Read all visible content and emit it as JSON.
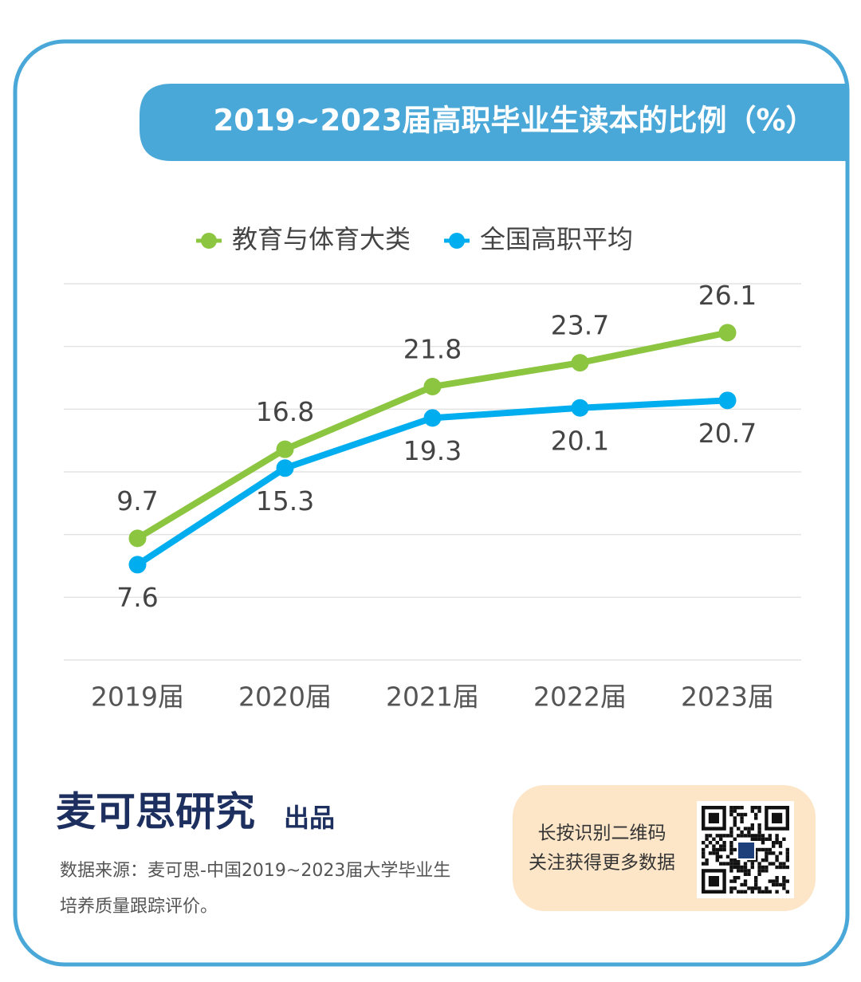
{
  "chart_data": {
    "type": "line",
    "title": "2019~2023届高职毕业生读本的比例（%）",
    "categories": [
      "2019届",
      "2020届",
      "2021届",
      "2022届",
      "2023届"
    ],
    "series": [
      {
        "name": "教育与体育大类",
        "color": "#8cc540",
        "values": [
          9.7,
          16.8,
          21.8,
          23.7,
          26.1
        ]
      },
      {
        "name": "全国高职平均",
        "color": "#00aeef",
        "values": [
          7.6,
          15.3,
          19.3,
          20.1,
          20.7
        ]
      }
    ],
    "ylim": [
      0,
      30
    ],
    "yticks": [
      0,
      5,
      10,
      15,
      20,
      25,
      30
    ],
    "grid": true
  },
  "footer": {
    "brand": "麦可思研究",
    "brand_suffix": "出品",
    "source": [
      "数据来源：麦可思-中国2019~2023届大学毕业生",
      "培养质量跟踪评价。"
    ],
    "qr_text": [
      "长按识别二维码",
      "关注获得更多数据"
    ]
  }
}
